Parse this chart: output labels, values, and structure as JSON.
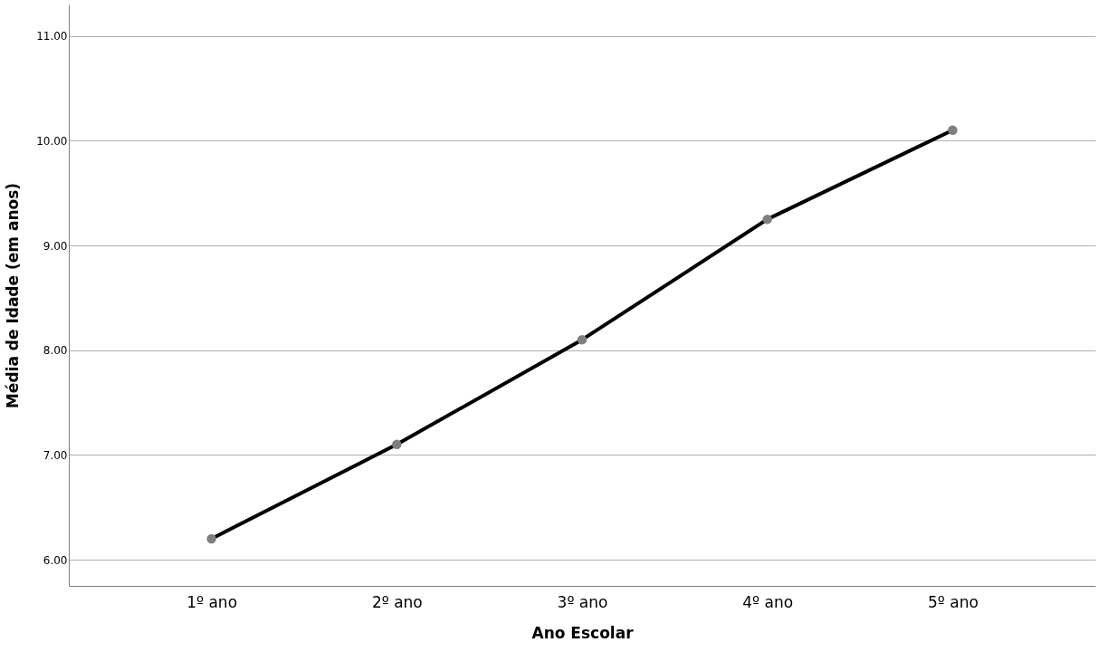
{
  "chart_data": {
    "type": "line",
    "xlabel": "Ano Escolar",
    "ylabel": "Média de Idade (em anos)",
    "categories": [
      "1º ano",
      "2º ano",
      "3º ano",
      "4º ano",
      "5º ano"
    ],
    "series": [
      {
        "color": "#000000",
        "colors": [
          "#7f7f7f",
          "#7f7f7f",
          "#7f7f7f",
          "#7f7f7f",
          "#7f7f7f"
        ],
        "values": [
          6.2,
          7.1,
          8.1,
          9.25,
          10.1
        ]
      }
    ],
    "ylim": [
      5.75,
      11.3
    ],
    "yticks": [
      {
        "value": 6,
        "label": "6.00"
      },
      {
        "value": 7,
        "label": "7.00"
      },
      {
        "value": 8,
        "label": "8.00"
      },
      {
        "value": 9,
        "label": "9.00"
      },
      {
        "value": 10,
        "label": "10.00"
      },
      {
        "value": 11,
        "label": "11.00"
      }
    ],
    "grid": "y",
    "marker": "circle",
    "line_style": "solid"
  }
}
